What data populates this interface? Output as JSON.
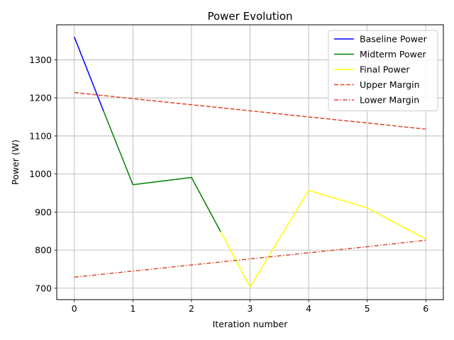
{
  "chart_data": {
    "type": "line",
    "title": "Power Evolution",
    "xlabel": "Iteration number",
    "ylabel": "Power (W)",
    "xlim": [
      -0.3,
      6.3
    ],
    "ylim": [
      670,
      1392
    ],
    "xticks": [
      0,
      1,
      2,
      3,
      4,
      5,
      6
    ],
    "yticks": [
      700,
      800,
      900,
      1000,
      1100,
      1200,
      1300
    ],
    "grid": true,
    "legend_position": "top-right",
    "series": [
      {
        "name": "Baseline Power",
        "color": "#0000ff",
        "dash": "solid",
        "x": [
          0,
          0.5
        ],
        "y": [
          1360,
          1165
        ]
      },
      {
        "name": "Midterm Power",
        "color": "#008000",
        "dash": "solid",
        "x": [
          0.5,
          1,
          2,
          2.5
        ],
        "y": [
          1165,
          972,
          991,
          848
        ]
      },
      {
        "name": "Final Power",
        "color": "#ffff00",
        "dash": "solid",
        "x": [
          2.5,
          3,
          4,
          5,
          6
        ],
        "y": [
          848,
          703,
          957,
          911,
          829
        ]
      },
      {
        "name": "Upper Margin",
        "color": "#d84a2e",
        "dash": "dashed",
        "x": [
          0,
          1,
          2,
          3,
          4,
          5,
          6
        ],
        "y": [
          1214,
          1198,
          1182,
          1166,
          1150,
          1134,
          1118
        ]
      },
      {
        "name": "Lower Margin",
        "color": "#d84a2e",
        "dash": "dashdot",
        "x": [
          0,
          1,
          2,
          3,
          4,
          5,
          6
        ],
        "y": [
          729,
          745,
          761,
          777,
          793,
          809,
          826
        ]
      }
    ]
  }
}
